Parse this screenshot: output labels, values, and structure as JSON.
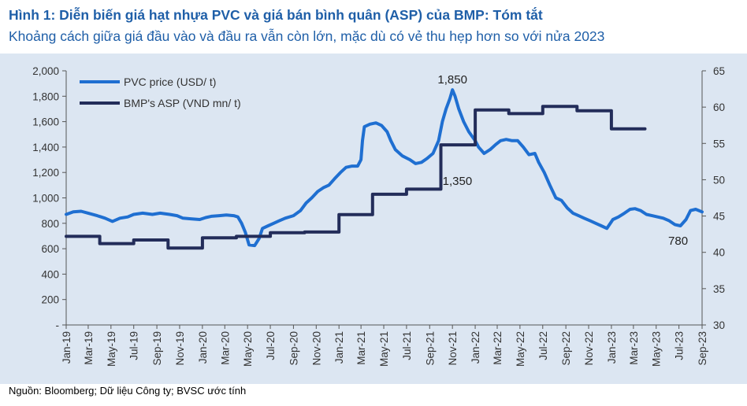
{
  "header": {
    "title": "Hình 1: Diễn biến giá hạt nhựa PVC và giá bán bình quân (ASP) của BMP: Tóm tắt",
    "subtitle": "Khoảng cách giữa giá đầu vào và đầu ra vẫn còn lớn, mặc dù có vẻ thu hẹp hơn so với nửa 2023"
  },
  "footer": {
    "source": "Nguồn: Bloomberg; Dữ liệu Công ty; BVSC ước tính"
  },
  "colors": {
    "pvc": "#1f6fd1",
    "asp": "#232d5a",
    "background": "#dce6f2",
    "title": "#1f5fa8"
  },
  "chart_data": {
    "type": "line",
    "title": "Hình 1: Diễn biến giá hạt nhựa PVC và giá bán bình quân (ASP) của BMP: Tóm tắt",
    "subtitle": "Khoảng cách giữa giá đầu vào và đầu ra vẫn còn lớn, mặc dù có vẻ thu hẹp hơn so với nửa 2023",
    "x_start": "2019-01",
    "x_end": "2023-09",
    "x_ticks": [
      "Jan-19",
      "Mar-19",
      "May-19",
      "Jul-19",
      "Sep-19",
      "Nov-19",
      "Jan-20",
      "Mar-20",
      "May-20",
      "Jul-20",
      "Sep-20",
      "Nov-20",
      "Jan-21",
      "Mar-21",
      "May-21",
      "Jul-21",
      "Sep-21",
      "Nov-21",
      "Jan-22",
      "Mar-22",
      "May-22",
      "Jul-22",
      "Sep-22",
      "Nov-22",
      "Jan-23",
      "Mar-23",
      "May-23",
      "Jul-23",
      "Sep-23"
    ],
    "y_left": {
      "min": 0,
      "max": 2000,
      "ticks": [
        "-",
        "200",
        "400",
        "600",
        "800",
        "1,000",
        "1,200",
        "1,400",
        "1,600",
        "1,800",
        "2,000"
      ]
    },
    "y_right": {
      "min": 30,
      "max": 65,
      "ticks": [
        "30",
        "35",
        "40",
        "45",
        "50",
        "55",
        "60",
        "65"
      ]
    },
    "legend_position": "top-left",
    "grid": false,
    "series": [
      {
        "name": "PVC price (USD/ t)",
        "axis": "left",
        "points": [
          [
            "2019-01-01",
            870
          ],
          [
            "2019-01-20",
            890
          ],
          [
            "2019-02-10",
            895
          ],
          [
            "2019-03-01",
            880
          ],
          [
            "2019-03-25",
            860
          ],
          [
            "2019-04-15",
            840
          ],
          [
            "2019-05-05",
            815
          ],
          [
            "2019-05-25",
            840
          ],
          [
            "2019-06-15",
            850
          ],
          [
            "2019-07-01",
            870
          ],
          [
            "2019-07-25",
            880
          ],
          [
            "2019-08-20",
            870
          ],
          [
            "2019-09-10",
            880
          ],
          [
            "2019-10-05",
            870
          ],
          [
            "2019-10-25",
            860
          ],
          [
            "2019-11-10",
            840
          ],
          [
            "2019-12-01",
            835
          ],
          [
            "2019-12-25",
            830
          ],
          [
            "2020-01-10",
            845
          ],
          [
            "2020-01-25",
            855
          ],
          [
            "2020-02-15",
            860
          ],
          [
            "2020-03-05",
            865
          ],
          [
            "2020-03-25",
            860
          ],
          [
            "2020-04-05",
            850
          ],
          [
            "2020-04-15",
            800
          ],
          [
            "2020-04-25",
            730
          ],
          [
            "2020-05-05",
            630
          ],
          [
            "2020-05-20",
            625
          ],
          [
            "2020-06-01",
            680
          ],
          [
            "2020-06-10",
            760
          ],
          [
            "2020-06-25",
            780
          ],
          [
            "2020-07-10",
            800
          ],
          [
            "2020-07-25",
            820
          ],
          [
            "2020-08-10",
            840
          ],
          [
            "2020-09-01",
            860
          ],
          [
            "2020-09-20",
            900
          ],
          [
            "2020-10-05",
            960
          ],
          [
            "2020-10-20",
            1000
          ],
          [
            "2020-11-05",
            1050
          ],
          [
            "2020-11-20",
            1080
          ],
          [
            "2020-12-05",
            1100
          ],
          [
            "2020-12-20",
            1150
          ],
          [
            "2021-01-05",
            1200
          ],
          [
            "2021-01-20",
            1240
          ],
          [
            "2021-02-05",
            1250
          ],
          [
            "2021-02-20",
            1250
          ],
          [
            "2021-03-01",
            1300
          ],
          [
            "2021-03-05",
            1450
          ],
          [
            "2021-03-10",
            1560
          ],
          [
            "2021-03-25",
            1580
          ],
          [
            "2021-04-10",
            1590
          ],
          [
            "2021-04-25",
            1570
          ],
          [
            "2021-05-10",
            1520
          ],
          [
            "2021-05-20",
            1450
          ],
          [
            "2021-06-01",
            1380
          ],
          [
            "2021-06-20",
            1330
          ],
          [
            "2021-07-10",
            1300
          ],
          [
            "2021-07-25",
            1270
          ],
          [
            "2021-08-10",
            1280
          ],
          [
            "2021-08-25",
            1310
          ],
          [
            "2021-09-10",
            1350
          ],
          [
            "2021-09-25",
            1450
          ],
          [
            "2021-10-05",
            1600
          ],
          [
            "2021-10-15",
            1700
          ],
          [
            "2021-10-25",
            1780
          ],
          [
            "2021-11-01",
            1850
          ],
          [
            "2021-11-08",
            1800
          ],
          [
            "2021-11-18",
            1700
          ],
          [
            "2021-12-01",
            1600
          ],
          [
            "2021-12-15",
            1520
          ],
          [
            "2022-01-01",
            1450
          ],
          [
            "2022-01-10",
            1400
          ],
          [
            "2022-01-25",
            1350
          ],
          [
            "2022-02-10",
            1380
          ],
          [
            "2022-02-25",
            1420
          ],
          [
            "2022-03-10",
            1450
          ],
          [
            "2022-03-25",
            1460
          ],
          [
            "2022-04-10",
            1450
          ],
          [
            "2022-04-25",
            1450
          ],
          [
            "2022-05-10",
            1400
          ],
          [
            "2022-05-25",
            1340
          ],
          [
            "2022-06-10",
            1350
          ],
          [
            "2022-06-20",
            1280
          ],
          [
            "2022-07-05",
            1200
          ],
          [
            "2022-07-20",
            1100
          ],
          [
            "2022-08-05",
            1000
          ],
          [
            "2022-08-20",
            980
          ],
          [
            "2022-09-05",
            920
          ],
          [
            "2022-09-20",
            880
          ],
          [
            "2022-10-05",
            860
          ],
          [
            "2022-10-20",
            840
          ],
          [
            "2022-11-05",
            820
          ],
          [
            "2022-11-20",
            800
          ],
          [
            "2022-12-05",
            780
          ],
          [
            "2022-12-20",
            760
          ],
          [
            "2023-01-05",
            830
          ],
          [
            "2023-01-20",
            850
          ],
          [
            "2023-02-05",
            880
          ],
          [
            "2023-02-20",
            910
          ],
          [
            "2023-03-05",
            915
          ],
          [
            "2023-03-20",
            900
          ],
          [
            "2023-04-05",
            870
          ],
          [
            "2023-04-20",
            860
          ],
          [
            "2023-05-05",
            850
          ],
          [
            "2023-05-20",
            840
          ],
          [
            "2023-06-05",
            820
          ],
          [
            "2023-06-20",
            790
          ],
          [
            "2023-07-05",
            780
          ],
          [
            "2023-07-20",
            830
          ],
          [
            "2023-08-01",
            900
          ],
          [
            "2023-08-15",
            910
          ],
          [
            "2023-09-01",
            890
          ]
        ]
      },
      {
        "name": "BMP's ASP (VND mn/ t)",
        "axis": "right",
        "points": [
          [
            "2019-01-01",
            42.2
          ],
          [
            "2019-04-01",
            42.2
          ],
          [
            "2019-04-01",
            41.2
          ],
          [
            "2019-07-01",
            41.2
          ],
          [
            "2019-07-01",
            41.7
          ],
          [
            "2019-10-01",
            41.7
          ],
          [
            "2019-10-01",
            40.6
          ],
          [
            "2020-01-01",
            40.6
          ],
          [
            "2020-01-01",
            42
          ],
          [
            "2020-04-01",
            42
          ],
          [
            "2020-04-01",
            42.2
          ],
          [
            "2020-07-01",
            42.2
          ],
          [
            "2020-07-01",
            42.7
          ],
          [
            "2020-10-01",
            42.7
          ],
          [
            "2020-10-01",
            42.8
          ],
          [
            "2021-01-01",
            42.8
          ],
          [
            "2021-01-01",
            45.2
          ],
          [
            "2021-04-01",
            45.2
          ],
          [
            "2021-04-01",
            48
          ],
          [
            "2021-07-01",
            48
          ],
          [
            "2021-07-01",
            48.7
          ],
          [
            "2021-10-01",
            48.7
          ],
          [
            "2021-10-01",
            54.8
          ],
          [
            "2022-01-01",
            54.8
          ],
          [
            "2022-01-01",
            59.6
          ],
          [
            "2022-04-01",
            59.6
          ],
          [
            "2022-04-01",
            59.1
          ],
          [
            "2022-07-01",
            59.1
          ],
          [
            "2022-07-01",
            60.1
          ],
          [
            "2022-10-01",
            60.1
          ],
          [
            "2022-10-01",
            59.5
          ],
          [
            "2023-01-01",
            59.5
          ],
          [
            "2023-01-01",
            57
          ],
          [
            "2023-04-01",
            57
          ]
        ]
      }
    ],
    "annotations": [
      {
        "text": "1,850",
        "x": "2021-11-01",
        "y": 1850,
        "axis": "left"
      },
      {
        "text": "1,350",
        "x": "2022-01-25",
        "y": 1350,
        "axis": "left"
      },
      {
        "text": "780",
        "x": "2023-07-05",
        "y": 780,
        "axis": "left"
      }
    ]
  }
}
